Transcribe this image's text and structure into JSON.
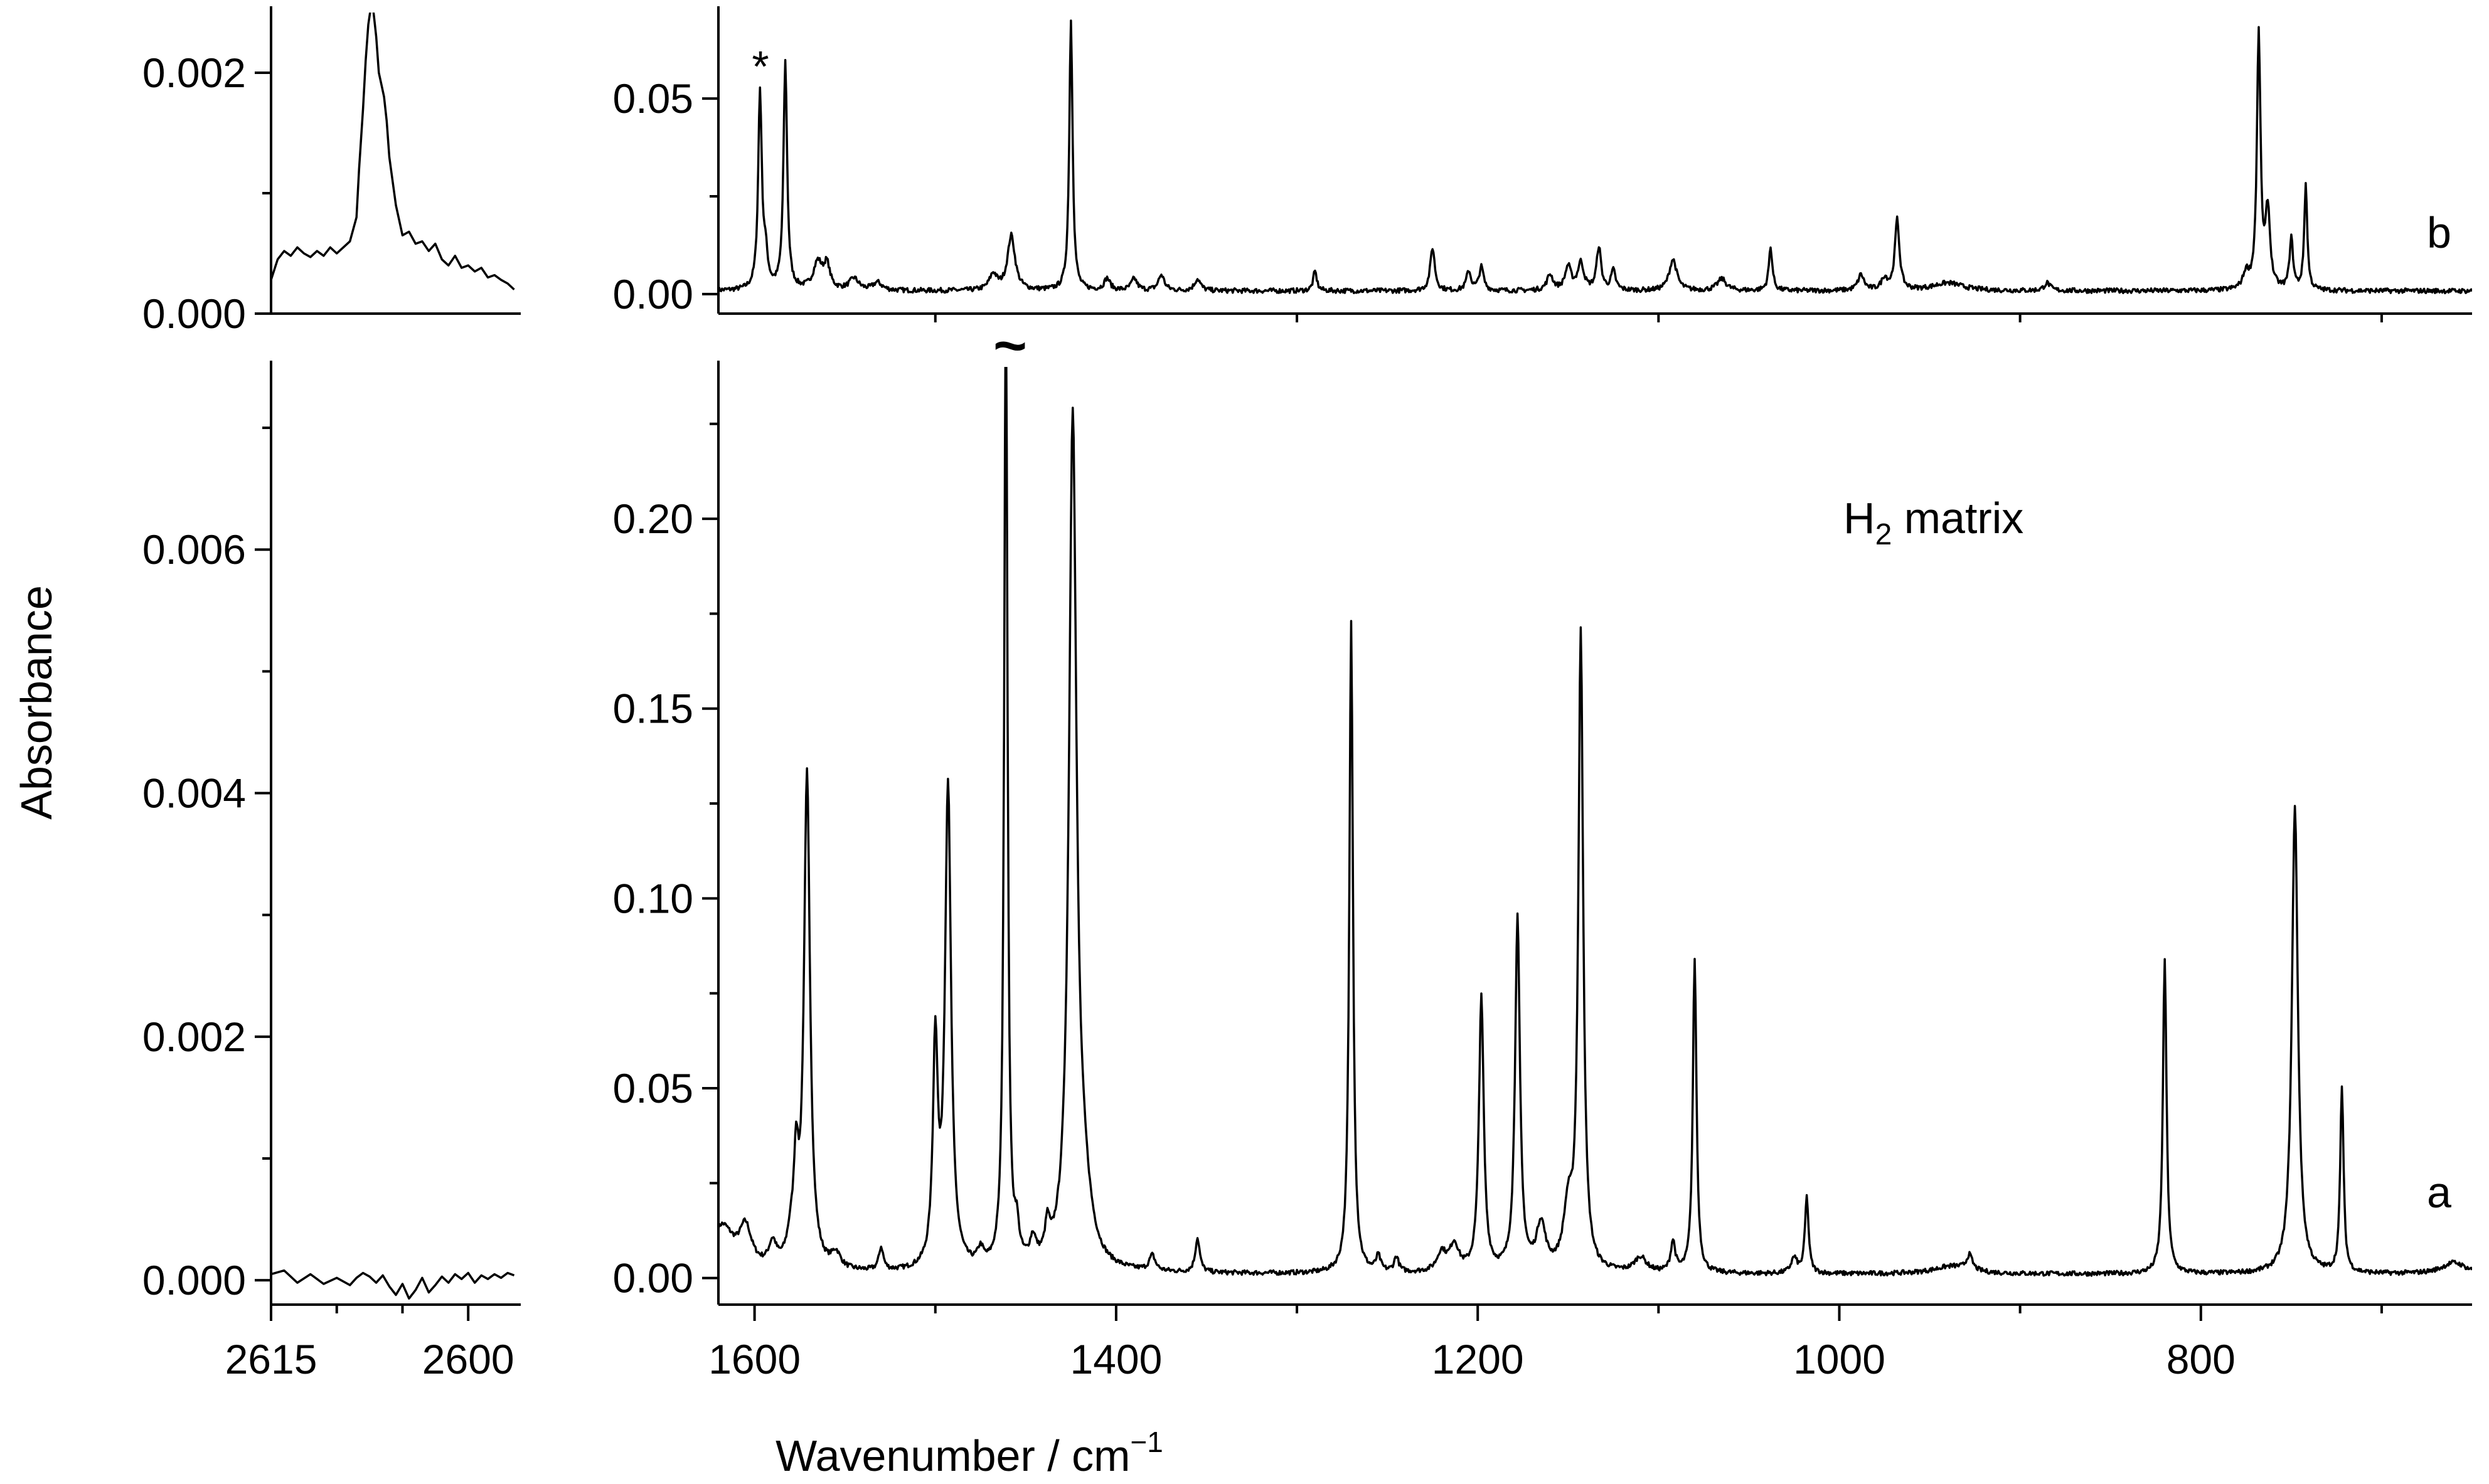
{
  "chart_data": [
    {
      "type": "line",
      "panel": "left-top",
      "xlim": [
        2615,
        2596
      ],
      "ylim": [
        0,
        0.0025
      ],
      "x_ticks": [],
      "y_ticks": [
        {
          "value": 0,
          "label": "0.000"
        },
        {
          "value": 0.002,
          "label": "0.002"
        }
      ],
      "y_minor_ticks": [
        0.001
      ],
      "series": [
        {
          "x": [
            2615,
            2614.5,
            2614,
            2613.5,
            2613,
            2612.5,
            2612,
            2611.5,
            2611,
            2610.5,
            2610,
            2609.5,
            2609,
            2608.5,
            2608.3,
            2608,
            2607.8,
            2607.6,
            2607.4,
            2607.2,
            2607,
            2606.8,
            2606.6,
            2606.4,
            2606.2,
            2606,
            2605.5,
            2605,
            2604.5,
            2604,
            2603.5,
            2603,
            2602.5,
            2602,
            2601.5,
            2601,
            2600.5,
            2600,
            2599.5,
            2599,
            2598.5,
            2598,
            2597.5,
            2597,
            2596.5
          ],
          "y": [
            0.00028,
            0.00045,
            0.00052,
            0.00048,
            0.00055,
            0.0005,
            0.00047,
            0.00052,
            0.00048,
            0.00055,
            0.0005,
            0.00055,
            0.0006,
            0.0008,
            0.0012,
            0.0017,
            0.0021,
            0.0024,
            0.00255,
            0.0025,
            0.0023,
            0.002,
            0.0019,
            0.0018,
            0.0016,
            0.0013,
            0.0009,
            0.00065,
            0.00068,
            0.00058,
            0.0006,
            0.00052,
            0.00058,
            0.00045,
            0.0004,
            0.00048,
            0.00038,
            0.0004,
            0.00035,
            0.00038,
            0.0003,
            0.00032,
            0.00028,
            0.00025,
            0.0002
          ]
        }
      ]
    },
    {
      "type": "line",
      "panel": "left-bottom",
      "xlim": [
        2615,
        2596
      ],
      "ylim": [
        -0.0002,
        0.0075
      ],
      "x_ticks": [
        {
          "value": 2615,
          "label": "2615"
        },
        {
          "value": 2600,
          "label": "2600"
        }
      ],
      "x_minor_ticks": [
        2610,
        2605
      ],
      "y_ticks": [
        {
          "value": 0,
          "label": "0.000"
        },
        {
          "value": 0.002,
          "label": "0.002"
        },
        {
          "value": 0.004,
          "label": "0.004"
        },
        {
          "value": 0.006,
          "label": "0.006"
        }
      ],
      "y_minor_ticks": [
        0.001,
        0.003,
        0.005,
        0.007
      ],
      "series": [
        {
          "x": [
            2615,
            2614,
            2613,
            2612,
            2611,
            2610,
            2609,
            2608.5,
            2608,
            2607.5,
            2607,
            2606.5,
            2606,
            2605.5,
            2605,
            2604.5,
            2604,
            2603.5,
            2603,
            2602.5,
            2602,
            2601.5,
            2601,
            2600.5,
            2600,
            2599.5,
            2599,
            2598.5,
            2598,
            2597.5,
            2597,
            2596.5
          ],
          "y": [
            5e-05,
            8e-05,
            -2e-05,
            5e-05,
            -3e-05,
            2e-05,
            -4e-05,
            2e-05,
            6e-05,
            3e-05,
            -2e-05,
            4e-05,
            -5e-05,
            -0.00012,
            -3e-05,
            -0.00015,
            -8e-05,
            2e-05,
            -0.0001,
            -4e-05,
            3e-05,
            -2e-05,
            5e-05,
            1e-05,
            6e-05,
            -2e-05,
            4e-05,
            1e-05,
            5e-05,
            2e-05,
            6e-05,
            4e-05
          ]
        }
      ]
    },
    {
      "type": "line",
      "panel": "right-top",
      "xlim": [
        1620,
        650
      ],
      "ylim": [
        -0.005,
        0.072
      ],
      "x_ticks": [],
      "x_minor_ticks": [
        1500,
        1300,
        1100,
        900,
        700
      ],
      "y_ticks": [
        {
          "value": 0,
          "label": "0.00"
        },
        {
          "value": 0.05,
          "label": "0.05"
        }
      ],
      "y_minor_ticks": [
        0.025
      ],
      "trace_label": "b",
      "annotation": "*",
      "annotation_x": 1597,
      "annotation_y": 0.056,
      "series": [
        {
          "baseline": 0.0008,
          "peaks": [
            [
              1597,
              0.05,
              1.2
            ],
            [
              1594,
              0.008,
              1.5
            ],
            [
              1583,
              0.058,
              1.2
            ],
            [
              1565,
              0.007,
              3
            ],
            [
              1560,
              0.006,
              2
            ],
            [
              1545,
              0.003,
              3
            ],
            [
              1532,
              0.002,
              3
            ],
            [
              1468,
              0.004,
              2.5
            ],
            [
              1458,
              0.014,
              2.5
            ],
            [
              1425,
              0.069,
              1.1
            ],
            [
              1405,
              0.003,
              2
            ],
            [
              1390,
              0.003,
              2
            ],
            [
              1375,
              0.004,
              2
            ],
            [
              1355,
              0.003,
              2
            ],
            [
              1290,
              0.005,
              1.2
            ],
            [
              1225,
              0.011,
              1.5
            ],
            [
              1205,
              0.005,
              1.5
            ],
            [
              1198,
              0.006,
              1.5
            ],
            [
              1160,
              0.004,
              2
            ],
            [
              1150,
              0.006,
              2
            ],
            [
              1143,
              0.007,
              2
            ],
            [
              1133,
              0.011,
              1.5
            ],
            [
              1125,
              0.005,
              1.5
            ],
            [
              1092,
              0.008,
              2.5
            ],
            [
              1065,
              0.003,
              3
            ],
            [
              1038,
              0.011,
              1.2
            ],
            [
              988,
              0.004,
              2
            ],
            [
              975,
              0.003,
              2
            ],
            [
              968,
              0.018,
              1.5
            ],
            [
              940,
              0.002,
              10
            ],
            [
              885,
              0.002,
              2
            ],
            [
              775,
              0.004,
              2
            ],
            [
              768,
              0.065,
              1.2
            ],
            [
              763,
              0.02,
              1.5
            ],
            [
              750,
              0.013,
              1.2
            ],
            [
              742,
              0.027,
              1.0
            ]
          ]
        }
      ]
    },
    {
      "type": "line",
      "panel": "right-bottom",
      "xlim": [
        1620,
        650
      ],
      "ylim": [
        -0.007,
        0.24
      ],
      "x_ticks": [
        {
          "value": 1600,
          "label": "1600"
        },
        {
          "value": 1400,
          "label": "1400"
        },
        {
          "value": 1200,
          "label": "1200"
        },
        {
          "value": 1000,
          "label": "1000"
        },
        {
          "value": 800,
          "label": "800"
        }
      ],
      "x_minor_ticks": [
        1500,
        1300,
        1100,
        900,
        700
      ],
      "y_ticks": [
        {
          "value": 0,
          "label": "0.00"
        },
        {
          "value": 0.05,
          "label": "0.05"
        },
        {
          "value": 0.1,
          "label": "0.10"
        },
        {
          "value": 0.15,
          "label": "0.15"
        },
        {
          "value": 0.2,
          "label": "0.20"
        }
      ],
      "y_minor_ticks": [
        0.025,
        0.075,
        0.125,
        0.175,
        0.225
      ],
      "trace_label": "a",
      "annotation": "H2 matrix",
      "annotation_x": 1190,
      "annotation_y": 0.2,
      "cut_peak": {
        "x": 1461,
        "label": "~"
      },
      "series": [
        {
          "baseline": 0.001,
          "peaks": [
            [
              1618,
              0.012,
              8
            ],
            [
              1605,
              0.01,
              4
            ],
            [
              1590,
              0.006,
              2.5
            ],
            [
              1580,
              0.006,
              2.5
            ],
            [
              1577,
              0.024,
              1.5
            ],
            [
              1571,
              0.13,
              2.0
            ],
            [
              1555,
              0.004,
              3
            ],
            [
              1530,
              0.006,
              1.5
            ],
            [
              1500,
              0.058,
              1.6
            ],
            [
              1493,
              0.127,
              2.0
            ],
            [
              1475,
              0.004,
              2
            ],
            [
              1461,
              0.26,
              1.1
            ],
            [
              1455,
              0.008,
              1.5
            ],
            [
              1446,
              0.006,
              2
            ],
            [
              1438,
              0.008,
              1.5
            ],
            [
              1424,
              0.222,
              2.5
            ],
            [
              1418,
              0.015,
              5
            ],
            [
              1380,
              0.004,
              2
            ],
            [
              1355,
              0.009,
              1.5
            ],
            [
              1270,
              0.172,
              1.2
            ],
            [
              1255,
              0.004,
              1.5
            ],
            [
              1245,
              0.004,
              1.5
            ],
            [
              1220,
              0.005,
              3
            ],
            [
              1213,
              0.007,
              3
            ],
            [
              1198,
              0.072,
              1.6
            ],
            [
              1178,
              0.093,
              1.6
            ],
            [
              1165,
              0.012,
              3
            ],
            [
              1150,
              0.015,
              3
            ],
            [
              1143,
              0.167,
              1.6
            ],
            [
              1110,
              0.004,
              4
            ],
            [
              1092,
              0.008,
              1.5
            ],
            [
              1080,
              0.083,
              1.2
            ],
            [
              1025,
              0.004,
              2
            ],
            [
              1018,
              0.02,
              1.2
            ],
            [
              938,
              0.002,
              12
            ],
            [
              928,
              0.004,
              2
            ],
            [
              820,
              0.083,
              1.2
            ],
            [
              748,
              0.123,
              2.0
            ],
            [
              722,
              0.049,
              1.1
            ],
            [
              660,
              0.003,
              8
            ]
          ]
        }
      ]
    }
  ],
  "labels": {
    "y_axis_title": "Absorbance",
    "x_axis_title_text": "Wavenumber / cm",
    "x_axis_title_sup": "−1",
    "trace_b": "b",
    "trace_a": "a",
    "asterisk": "*",
    "matrix_label_main": "H",
    "matrix_label_sub": "2",
    "matrix_label_rest": " matrix",
    "cut_mark": "~"
  }
}
